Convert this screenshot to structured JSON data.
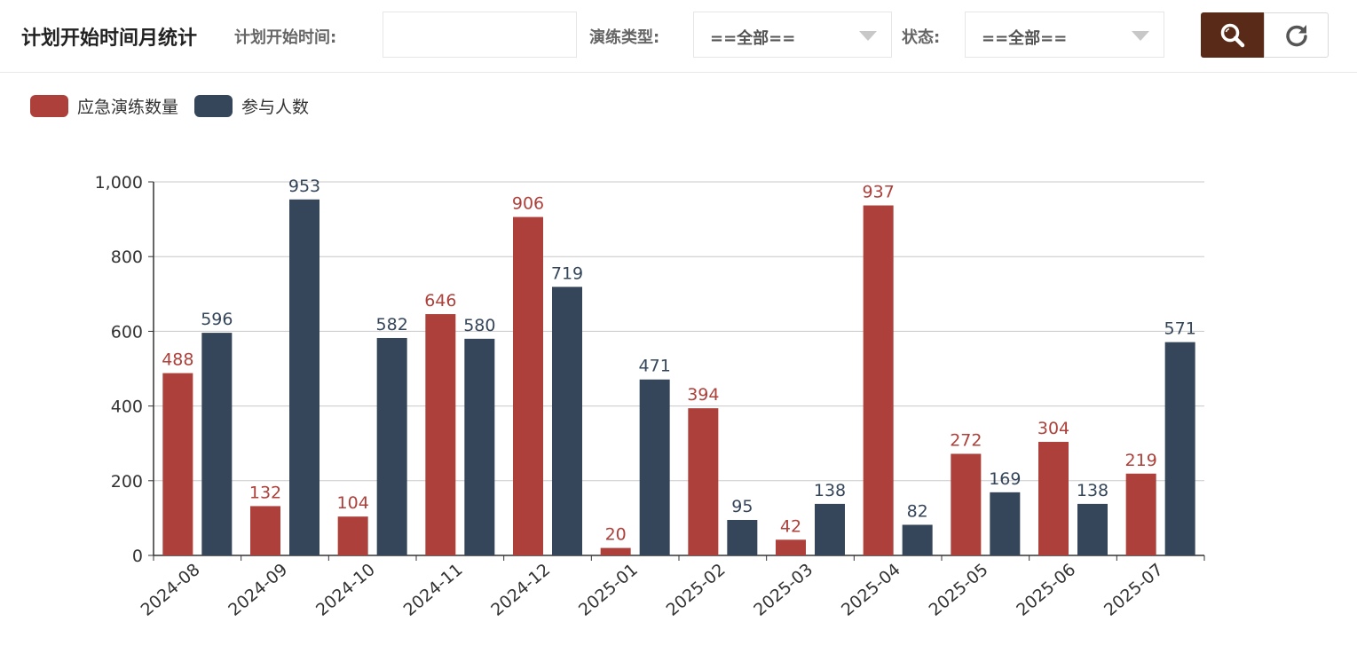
{
  "header": {
    "title": "计划开始时间月统计",
    "filters": {
      "start_time_label": "计划开始时间:",
      "start_time_value": "",
      "type_label": "演练类型:",
      "type_value": "==全部==",
      "status_label": "状态:",
      "status_value": "==全部=="
    },
    "buttons": {
      "search_icon": "search-icon",
      "reset_icon": "refresh-icon"
    }
  },
  "colors": {
    "series_drills": "#ad403a",
    "series_people": "#35465a",
    "search_button": "#5a2a18"
  },
  "chart_data": {
    "type": "bar",
    "categories": [
      "2024-08",
      "2024-09",
      "2024-10",
      "2024-11",
      "2024-12",
      "2025-01",
      "2025-02",
      "2025-03",
      "2025-04",
      "2025-05",
      "2025-06",
      "2025-07"
    ],
    "series": [
      {
        "name": "应急演练数量",
        "values": [
          488,
          132,
          104,
          646,
          906,
          20,
          394,
          42,
          937,
          272,
          304,
          219
        ]
      },
      {
        "name": "参与人数",
        "values": [
          596,
          953,
          582,
          580,
          719,
          471,
          95,
          138,
          82,
          169,
          138,
          571
        ]
      }
    ],
    "yticks": [
      "0",
      "200",
      "400",
      "600",
      "800",
      "1,000"
    ],
    "ylim": [
      0,
      1000
    ],
    "legend_position": "top-left",
    "grid": true
  }
}
